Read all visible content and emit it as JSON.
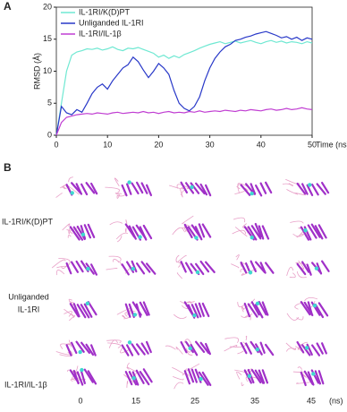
{
  "chart_data": {
    "type": "line",
    "panel_label": "A",
    "x_label": "Time (ns)",
    "y_label": "RMSD (Å)",
    "x": [
      0,
      1,
      2,
      3,
      4,
      5,
      6,
      7,
      8,
      9,
      10,
      11,
      12,
      13,
      14,
      15,
      16,
      17,
      18,
      19,
      20,
      21,
      22,
      23,
      24,
      25,
      26,
      27,
      28,
      29,
      30,
      31,
      32,
      33,
      34,
      35,
      36,
      37,
      38,
      39,
      40,
      41,
      42,
      43,
      44,
      45,
      46,
      47,
      48,
      49,
      50
    ],
    "series": [
      {
        "name": "IL-1RI/K(D)PT",
        "color": "#6fe8d2",
        "values": [
          0,
          5,
          10,
          12.5,
          13,
          13.2,
          13.5,
          13.4,
          13.6,
          13.3,
          13.5,
          13.8,
          13.4,
          13.2,
          13.6,
          13.5,
          13.7,
          13.4,
          13.1,
          12.8,
          12.2,
          12.5,
          12.0,
          12.4,
          12.1,
          12.6,
          12.9,
          13.2,
          13.6,
          13.9,
          14.2,
          14.4,
          14.6,
          14.3,
          14.5,
          14.7,
          14.4,
          14.6,
          14.8,
          14.5,
          14.3,
          14.6,
          14.8,
          14.5,
          14.7,
          14.4,
          14.6,
          14.5,
          14.3,
          14.6,
          14.4
        ]
      },
      {
        "name": "Unliganded IL-1RI",
        "color": "#2838c8",
        "values": [
          0,
          4.5,
          3.5,
          3.2,
          4,
          3.6,
          5,
          6.5,
          7.5,
          8,
          7.2,
          8.5,
          9.5,
          10.5,
          11,
          12.2,
          11.5,
          10.2,
          9,
          10,
          11.2,
          10.5,
          9.5,
          7,
          5,
          4.2,
          3.8,
          4.5,
          6,
          8.5,
          10.5,
          12,
          13,
          13.8,
          14.2,
          14.8,
          15,
          15.3,
          15.5,
          15.8,
          16,
          16.2,
          15.9,
          15.6,
          15.2,
          15.4,
          15,
          15.3,
          14.8,
          15.2,
          15
        ]
      },
      {
        "name": "IL-1RI/IL-1β",
        "color": "#c03ed2",
        "values": [
          0,
          2,
          2.8,
          3,
          3.2,
          3.3,
          3.4,
          3.3,
          3.5,
          3.4,
          3.3,
          3.5,
          3.6,
          3.4,
          3.5,
          3.6,
          3.5,
          3.7,
          3.5,
          3.6,
          3.4,
          3.6,
          3.7,
          3.5,
          3.6,
          3.5,
          3.7,
          3.6,
          3.8,
          3.6,
          3.7,
          3.8,
          3.7,
          3.9,
          3.8,
          3.7,
          3.9,
          3.8,
          4,
          3.9,
          3.8,
          4,
          4.1,
          3.9,
          4,
          4.2,
          4,
          4.1,
          4.3,
          4.1,
          4
        ]
      }
    ],
    "xlim": [
      0,
      50
    ],
    "xticks": [
      0,
      10,
      20,
      30,
      40,
      50
    ],
    "ylim": [
      0,
      20
    ],
    "yticks": [
      0,
      5,
      10,
      15,
      20
    ],
    "legend": "top-left"
  },
  "panel_b": {
    "panel_label": "B",
    "row_labels": [
      [
        "IL-1RI/K(D)PT"
      ],
      [
        "Unliganded",
        "IL-1RI"
      ],
      [
        "IL-1RI/IL-1β"
      ]
    ],
    "times": [
      0,
      15,
      25,
      35,
      45
    ],
    "time_unit": "(ns)"
  }
}
